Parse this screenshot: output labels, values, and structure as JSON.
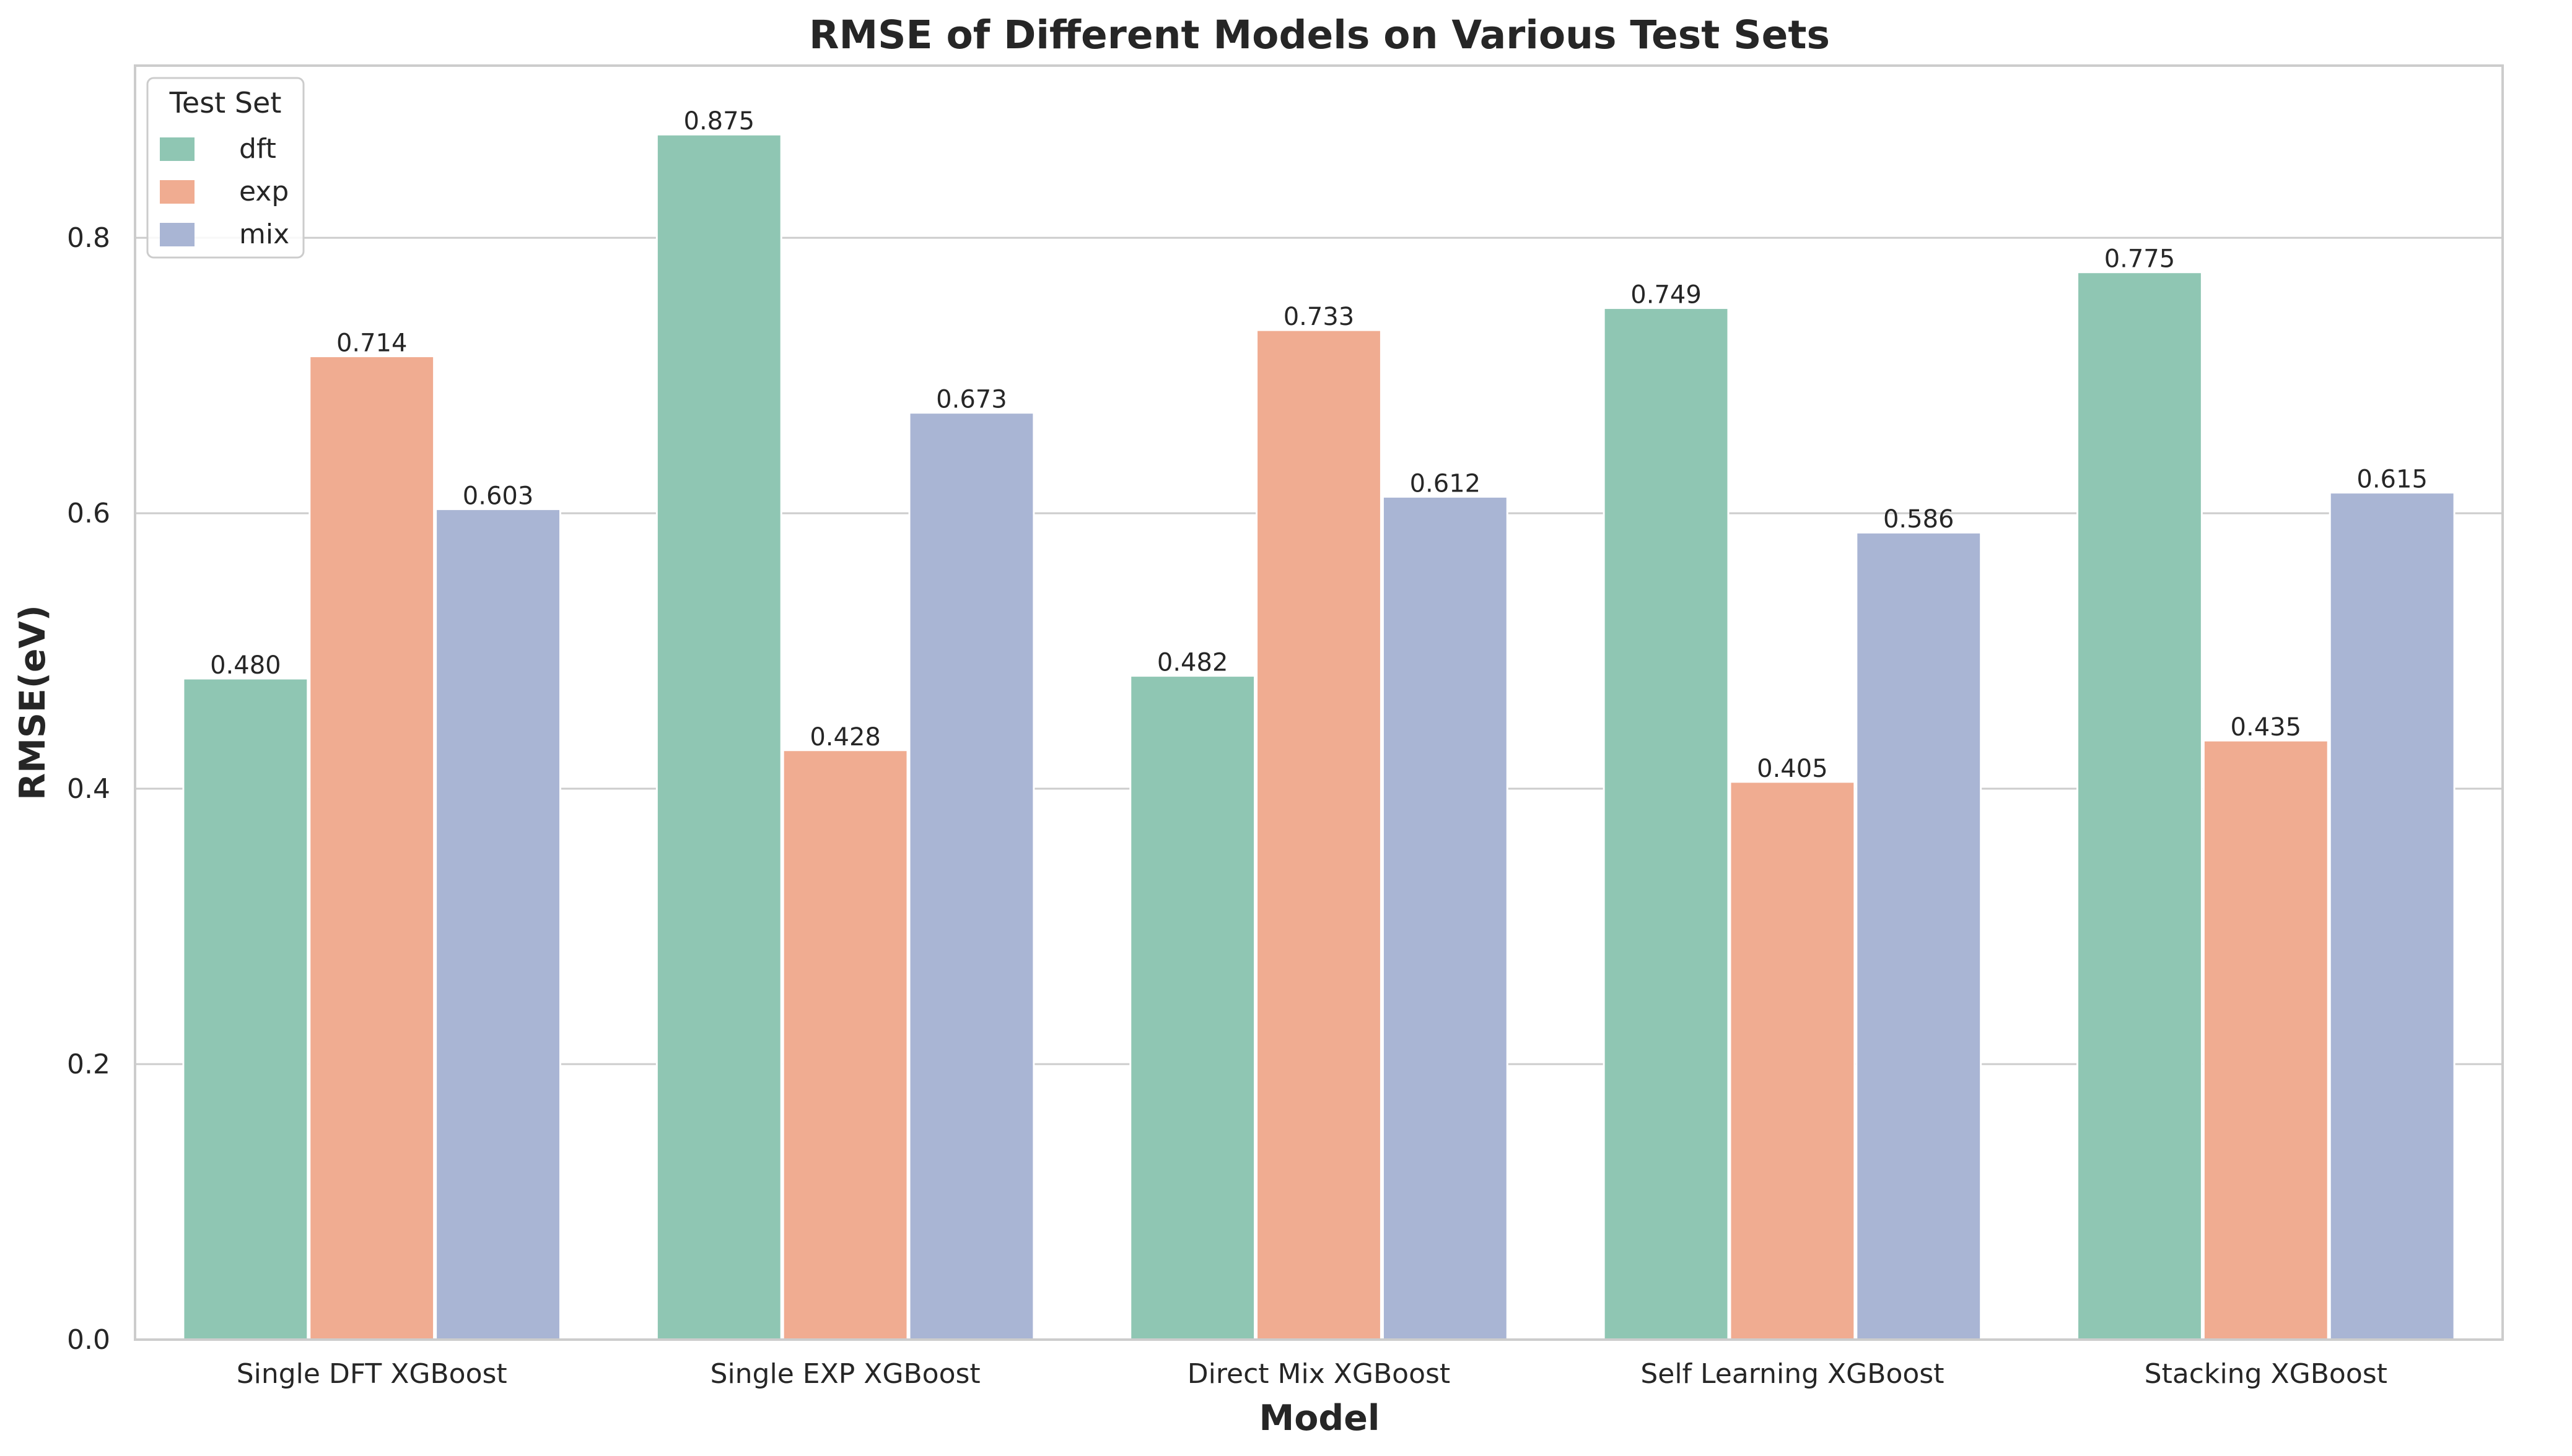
{
  "chart_data": {
    "type": "bar",
    "title": "RMSE of Different Models on Various Test Sets",
    "xlabel": "Model",
    "ylabel": "RMSE(eV)",
    "categories": [
      "Single DFT XGBoost",
      "Single EXP XGBoost",
      "Direct Mix XGBoost",
      "Self Learning XGBoost",
      "Stacking XGBoost"
    ],
    "series": [
      {
        "name": "dft",
        "values": [
          0.48,
          0.875,
          0.482,
          0.749,
          0.775
        ],
        "labels": [
          "0.480",
          "0.875",
          "0.482",
          "0.749",
          "0.775"
        ],
        "color": "#8fc6b3"
      },
      {
        "name": "exp",
        "values": [
          0.714,
          0.428,
          0.733,
          0.405,
          0.435
        ],
        "labels": [
          "0.714",
          "0.428",
          "0.733",
          "0.405",
          "0.435"
        ],
        "color": "#f0ac91"
      },
      {
        "name": "mix",
        "values": [
          0.603,
          0.673,
          0.612,
          0.586,
          0.615
        ],
        "labels": [
          "0.603",
          "0.673",
          "0.612",
          "0.586",
          "0.615"
        ],
        "color": "#a9b5d4"
      }
    ],
    "ylim": [
      0,
      0.925
    ],
    "yticks": [
      "0.0",
      "0.2",
      "0.4",
      "0.6",
      "0.8"
    ],
    "ytick_values": [
      0.0,
      0.2,
      0.4,
      0.6,
      0.8
    ],
    "legend": {
      "title": "Test Set",
      "placement": "top-left"
    },
    "grid": "horizontal"
  }
}
